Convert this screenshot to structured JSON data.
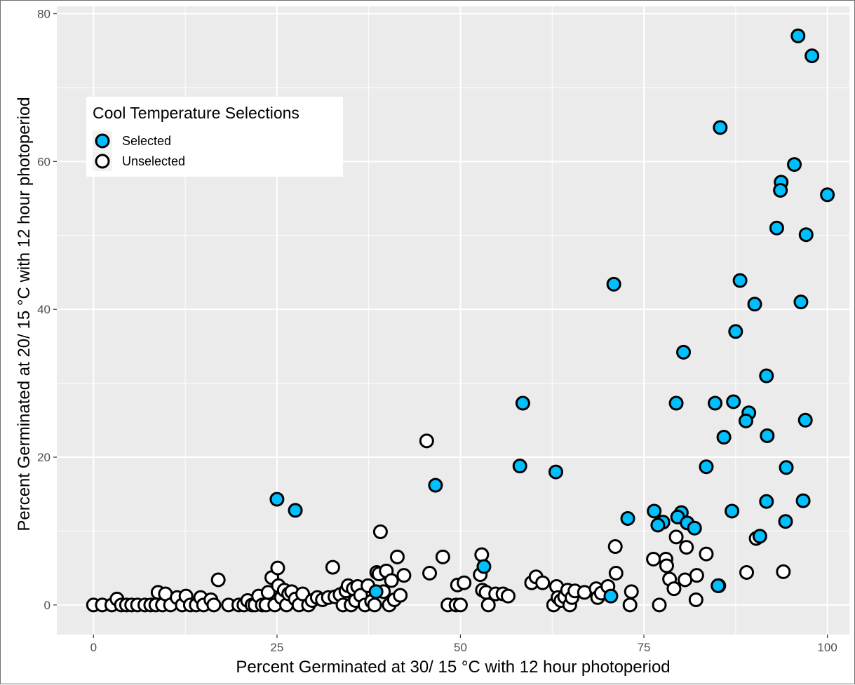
{
  "chart_data": {
    "type": "scatter",
    "xlabel": "Percent Germinated at 30/ 15 °C with 12 hour photoperiod",
    "ylabel": "Percent Germinated at 20/ 15 °C with 12 hour photoperiod",
    "xlim": [
      -5,
      103
    ],
    "ylim": [
      -4,
      81
    ],
    "x_ticks": [
      0,
      25,
      50,
      75,
      100
    ],
    "y_ticks": [
      0,
      20,
      40,
      60,
      80
    ],
    "grid": true,
    "legend": {
      "title": "Cool Temperature Selections",
      "position": "top-left",
      "entries": [
        {
          "label": "Selected",
          "color": "#00bfff"
        },
        {
          "label": "Unselected",
          "color": "#ffffff"
        }
      ]
    },
    "series": [
      {
        "name": "Selected",
        "color": "#00bfff",
        "points": [
          [
            96.0,
            77.0
          ],
          [
            97.9,
            74.3
          ],
          [
            85.4,
            64.6
          ],
          [
            95.5,
            59.6
          ],
          [
            93.7,
            57.2
          ],
          [
            93.6,
            56.1
          ],
          [
            100.0,
            55.5
          ],
          [
            93.1,
            51.0
          ],
          [
            97.1,
            50.1
          ],
          [
            70.9,
            43.4
          ],
          [
            88.1,
            43.9
          ],
          [
            90.1,
            40.7
          ],
          [
            96.4,
            41.0
          ],
          [
            87.5,
            37.0
          ],
          [
            80.4,
            34.2
          ],
          [
            91.7,
            31.0
          ],
          [
            58.5,
            27.3
          ],
          [
            79.4,
            27.3
          ],
          [
            84.7,
            27.3
          ],
          [
            87.2,
            27.5
          ],
          [
            89.3,
            26.0
          ],
          [
            88.9,
            24.9
          ],
          [
            97.0,
            25.0
          ],
          [
            85.9,
            22.7
          ],
          [
            91.8,
            22.9
          ],
          [
            58.1,
            18.8
          ],
          [
            63.0,
            18.0
          ],
          [
            83.5,
            18.7
          ],
          [
            94.4,
            18.6
          ],
          [
            46.6,
            16.2
          ],
          [
            25.0,
            14.3
          ],
          [
            27.5,
            12.8
          ],
          [
            91.7,
            14.0
          ],
          [
            96.7,
            14.1
          ],
          [
            72.8,
            11.7
          ],
          [
            76.4,
            12.7
          ],
          [
            77.6,
            11.2
          ],
          [
            76.9,
            10.8
          ],
          [
            80.1,
            12.5
          ],
          [
            79.6,
            11.9
          ],
          [
            80.9,
            11.1
          ],
          [
            81.9,
            10.4
          ],
          [
            87.0,
            12.7
          ],
          [
            94.3,
            11.3
          ],
          [
            90.8,
            9.3
          ],
          [
            53.2,
            5.2
          ],
          [
            38.5,
            1.8
          ],
          [
            70.5,
            1.2
          ],
          [
            85.1,
            2.6
          ]
        ]
      },
      {
        "name": "Unselected",
        "color": "#ffffff",
        "points": [
          [
            0.0,
            0.0
          ],
          [
            1.2,
            0.0
          ],
          [
            2.5,
            0.0
          ],
          [
            3.2,
            0.8
          ],
          [
            3.8,
            0.0
          ],
          [
            4.5,
            0.0
          ],
          [
            5.2,
            0.0
          ],
          [
            6.0,
            0.0
          ],
          [
            7.0,
            0.0
          ],
          [
            7.8,
            0.0
          ],
          [
            8.5,
            0.0
          ],
          [
            8.8,
            1.7
          ],
          [
            9.4,
            0.0
          ],
          [
            9.8,
            1.5
          ],
          [
            10.5,
            0.0
          ],
          [
            11.4,
            1.0
          ],
          [
            12.1,
            0.0
          ],
          [
            12.6,
            1.2
          ],
          [
            13.2,
            0.0
          ],
          [
            14.0,
            0.0
          ],
          [
            14.6,
            1.0
          ],
          [
            15.0,
            0.0
          ],
          [
            16.0,
            0.7
          ],
          [
            16.4,
            0.0
          ],
          [
            17.0,
            3.4
          ],
          [
            18.4,
            0.0
          ],
          [
            19.8,
            0.0
          ],
          [
            20.5,
            0.0
          ],
          [
            21.0,
            0.6
          ],
          [
            21.6,
            0.0
          ],
          [
            22.0,
            0.0
          ],
          [
            22.5,
            1.2
          ],
          [
            23.0,
            0.0
          ],
          [
            23.5,
            0.0
          ],
          [
            23.8,
            1.7
          ],
          [
            24.3,
            3.7
          ],
          [
            24.7,
            0.0
          ],
          [
            25.1,
            5.0
          ],
          [
            25.2,
            2.6
          ],
          [
            25.6,
            1.0
          ],
          [
            26.0,
            2.0
          ],
          [
            26.3,
            0.0
          ],
          [
            26.6,
            1.5
          ],
          [
            27.0,
            1.8
          ],
          [
            27.5,
            0.8
          ],
          [
            28.0,
            0.0
          ],
          [
            28.5,
            1.5
          ],
          [
            29.3,
            0.0
          ],
          [
            29.8,
            0.6
          ],
          [
            30.5,
            1.0
          ],
          [
            31.2,
            0.7
          ],
          [
            32.0,
            1.0
          ],
          [
            32.6,
            5.1
          ],
          [
            32.9,
            1.1
          ],
          [
            33.6,
            1.4
          ],
          [
            34.0,
            0.0
          ],
          [
            34.4,
            1.9
          ],
          [
            34.7,
            2.6
          ],
          [
            35.1,
            0.0
          ],
          [
            35.4,
            2.2
          ],
          [
            35.7,
            0.6
          ],
          [
            36.0,
            2.5
          ],
          [
            36.4,
            1.3
          ],
          [
            37.0,
            0.0
          ],
          [
            37.4,
            2.6
          ],
          [
            37.9,
            0.5
          ],
          [
            38.3,
            0.0
          ],
          [
            38.6,
            4.4
          ],
          [
            38.9,
            4.2
          ],
          [
            39.1,
            9.9
          ],
          [
            39.5,
            1.8
          ],
          [
            39.9,
            4.6
          ],
          [
            40.3,
            0.0
          ],
          [
            40.6,
            3.3
          ],
          [
            41.0,
            0.7
          ],
          [
            41.4,
            6.5
          ],
          [
            41.8,
            1.3
          ],
          [
            42.3,
            4.0
          ],
          [
            45.4,
            22.2
          ],
          [
            45.8,
            4.3
          ],
          [
            47.6,
            6.5
          ],
          [
            48.3,
            0.0
          ],
          [
            49.4,
            0.0
          ],
          [
            49.6,
            2.7
          ],
          [
            50.0,
            0.0
          ],
          [
            50.5,
            3.0
          ],
          [
            52.7,
            4.1
          ],
          [
            52.9,
            6.8
          ],
          [
            53.0,
            2.0
          ],
          [
            53.5,
            1.7
          ],
          [
            53.8,
            0.0
          ],
          [
            54.8,
            1.5
          ],
          [
            55.8,
            1.5
          ],
          [
            56.5,
            1.2
          ],
          [
            59.7,
            3.0
          ],
          [
            60.3,
            3.8
          ],
          [
            61.2,
            3.0
          ],
          [
            62.7,
            0.0
          ],
          [
            63.1,
            2.5
          ],
          [
            63.3,
            1.0
          ],
          [
            63.7,
            0.6
          ],
          [
            64.2,
            1.1
          ],
          [
            64.6,
            2.0
          ],
          [
            64.9,
            0.0
          ],
          [
            65.2,
            1.0
          ],
          [
            65.6,
            1.9
          ],
          [
            66.9,
            1.7
          ],
          [
            68.5,
            2.2
          ],
          [
            68.7,
            1.0
          ],
          [
            69.2,
            1.6
          ],
          [
            70.1,
            2.5
          ],
          [
            71.1,
            7.9
          ],
          [
            71.2,
            4.3
          ],
          [
            73.1,
            0.0
          ],
          [
            73.3,
            1.8
          ],
          [
            76.3,
            6.2
          ],
          [
            77.1,
            0.0
          ],
          [
            78.0,
            6.2
          ],
          [
            78.1,
            5.3
          ],
          [
            78.5,
            3.5
          ],
          [
            79.1,
            2.2
          ],
          [
            79.4,
            9.2
          ],
          [
            80.6,
            3.4
          ],
          [
            80.8,
            7.8
          ],
          [
            82.1,
            0.7
          ],
          [
            82.2,
            4.0
          ],
          [
            83.5,
            6.9
          ],
          [
            85.2,
            2.6
          ],
          [
            89.0,
            4.4
          ],
          [
            90.3,
            9.0
          ],
          [
            94.0,
            4.5
          ]
        ]
      }
    ]
  }
}
